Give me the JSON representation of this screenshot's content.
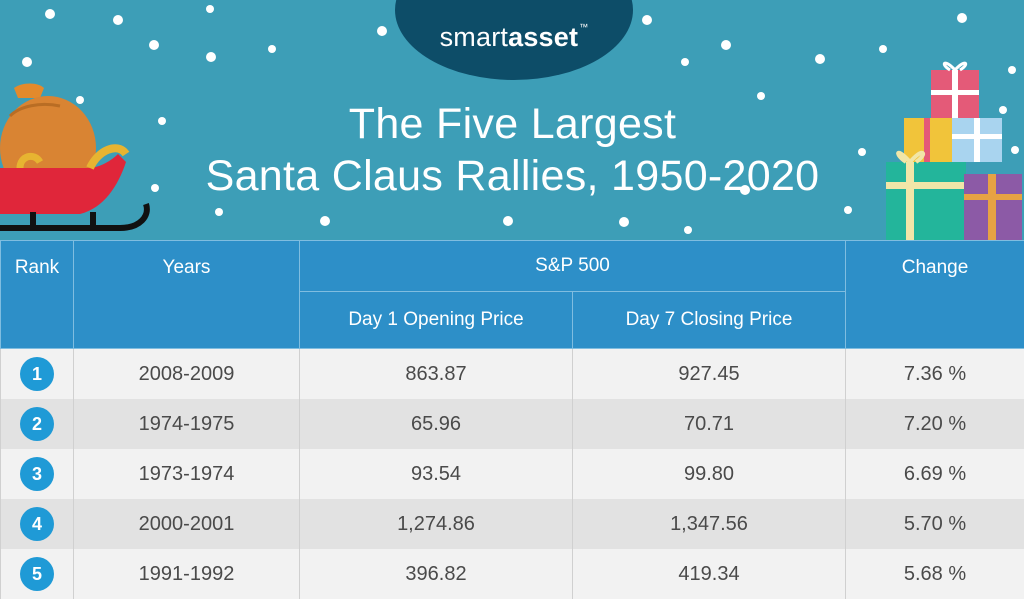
{
  "brand": {
    "prefix": "smart",
    "suffix": "asset",
    "tm": "™"
  },
  "title": {
    "line1": "The Five Largest",
    "line2": "Santa Claus Rallies, 1950-2020"
  },
  "colors": {
    "banner": "#3d9eb7",
    "brand_oval": "#0d4d68",
    "header": "#2d8fc8",
    "badge": "#1f9ad6",
    "row_light": "#f2f2f2",
    "row_dark": "#e2e2e2"
  },
  "table": {
    "headers": {
      "rank": "Rank",
      "years": "Years",
      "group": "S&P 500",
      "open": "Day 1 Opening Price",
      "close": "Day 7 Closing Price",
      "change": "Change"
    }
  },
  "chart_data": {
    "type": "table",
    "title": "The Five Largest Santa Claus Rallies, 1950-2020",
    "columns": [
      "Rank",
      "Years",
      "Day 1 Opening Price",
      "Day 7 Closing Price",
      "Change"
    ],
    "rows": [
      {
        "rank": "1",
        "years": "2008-2009",
        "open": "863.87",
        "close": "927.45",
        "change": "7.36 %"
      },
      {
        "rank": "2",
        "years": "1974-1975",
        "open": "65.96",
        "close": "70.71",
        "change": "7.20 %"
      },
      {
        "rank": "3",
        "years": "1973-1974",
        "open": "93.54",
        "close": "99.80",
        "change": "6.69 %"
      },
      {
        "rank": "4",
        "years": "2000-2001",
        "open": "1,274.86",
        "close": "1,347.56",
        "change": "5.70 %"
      },
      {
        "rank": "5",
        "years": "1991-1992",
        "open": "396.82",
        "close": "419.34",
        "change": "5.68 %"
      }
    ]
  }
}
